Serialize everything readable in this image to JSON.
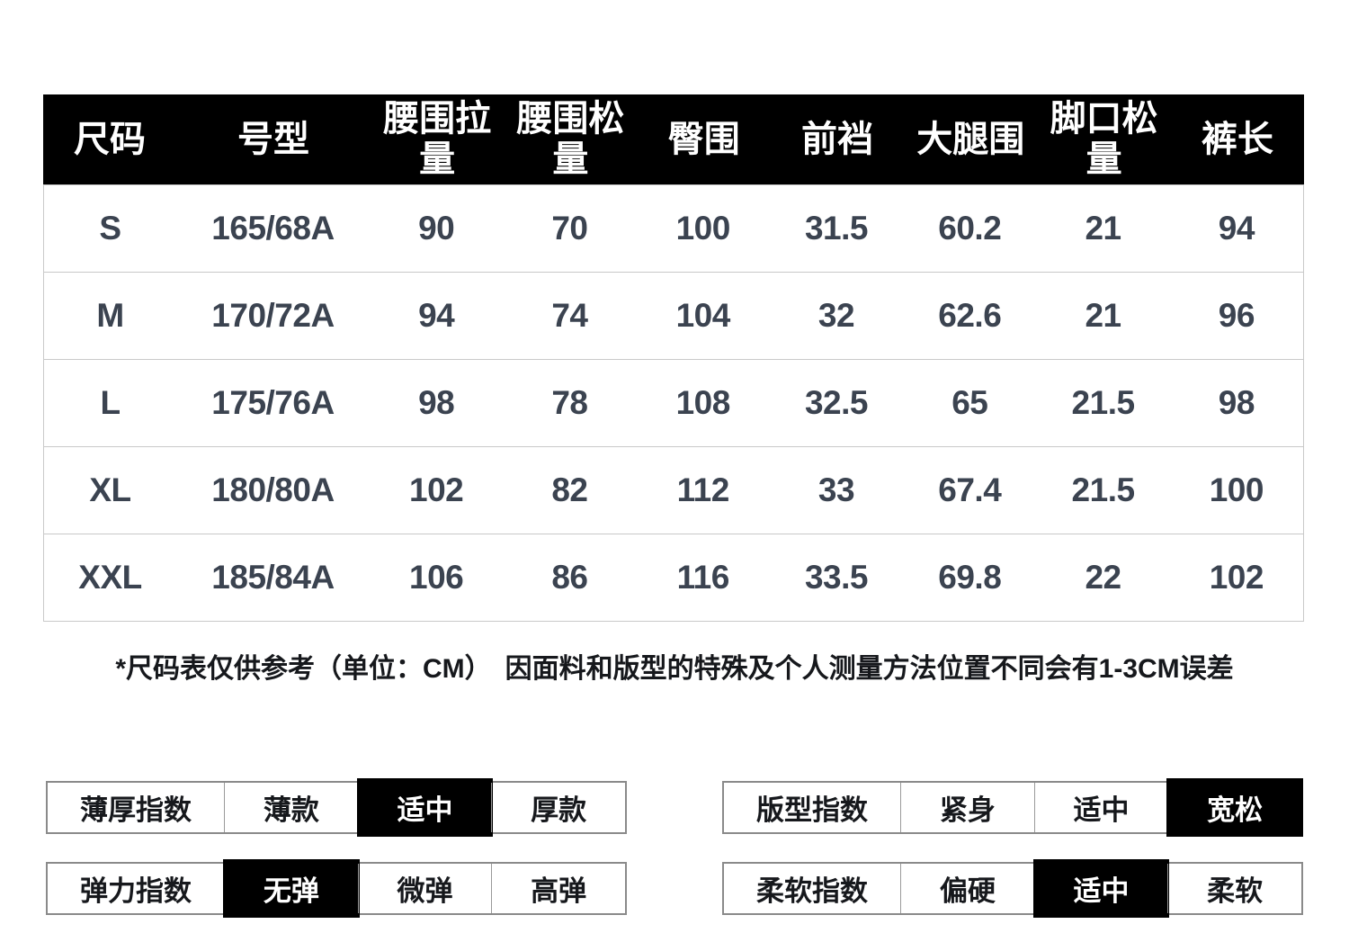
{
  "size_table": {
    "headers": [
      "尺码",
      "号型",
      "腰围拉量",
      "腰围松量",
      "臀围",
      "前裆",
      "大腿围",
      "脚口松量",
      "裤长"
    ],
    "rows": [
      [
        "S",
        "165/68A",
        "90",
        "70",
        "100",
        "31.5",
        "60.2",
        "21",
        "94"
      ],
      [
        "M",
        "170/72A",
        "94",
        "74",
        "104",
        "32",
        "62.6",
        "21",
        "96"
      ],
      [
        "L",
        "175/76A",
        "98",
        "78",
        "108",
        "32.5",
        "65",
        "21.5",
        "98"
      ],
      [
        "XL",
        "180/80A",
        "102",
        "82",
        "112",
        "33",
        "67.4",
        "21.5",
        "100"
      ],
      [
        "XXL",
        "185/84A",
        "106",
        "86",
        "116",
        "33.5",
        "69.8",
        "22",
        "102"
      ]
    ],
    "unit": "CM"
  },
  "note": "*尺码表仅供参考（单位：CM）　因面料和版型的特殊及个人测量方法位置不同会有1-3CM误差",
  "index_tables": [
    {
      "key": "thickness",
      "label": "薄厚指数",
      "options": [
        "薄款",
        "适中",
        "厚款"
      ],
      "selected": 1
    },
    {
      "key": "fit",
      "label": "版型指数",
      "options": [
        "紧身",
        "适中",
        "宽松"
      ],
      "selected": 2
    },
    {
      "key": "stretch",
      "label": "弹力指数",
      "options": [
        "无弹",
        "微弹",
        "高弹"
      ],
      "selected": 0
    },
    {
      "key": "softness",
      "label": "柔软指数",
      "options": [
        "偏硬",
        "适中",
        "柔软"
      ],
      "selected": 1
    }
  ],
  "colors": {
    "header_bg": "#000000",
    "header_text": "#ffffff",
    "selected_bg": "#000000",
    "selected_text": "#ffffff",
    "body_text": "#3b4350",
    "note_text": "#16181c",
    "table_border": "#c9c9c9",
    "index_border": "#8a8a8a"
  }
}
